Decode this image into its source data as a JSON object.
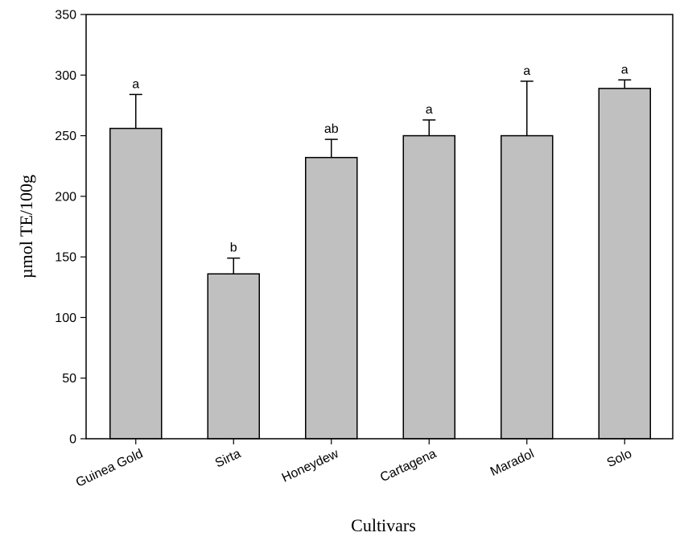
{
  "chart_data": {
    "type": "bar",
    "title": "",
    "xlabel": "Cultivars",
    "ylabel": "µmol TE/100g",
    "ylim": [
      0,
      350
    ],
    "yticks": [
      0,
      50,
      100,
      150,
      200,
      250,
      300,
      350
    ],
    "categories": [
      "Guinea Gold",
      "Sirta",
      "Honeydew",
      "Cartagena",
      "Maradol",
      "Solo"
    ],
    "values": [
      256,
      136,
      232,
      250,
      250,
      289
    ],
    "error_upper": [
      28,
      13,
      15,
      13,
      45,
      7
    ],
    "significance_letters": [
      "a",
      "b",
      "ab",
      "a",
      "a",
      "a"
    ],
    "grid": false,
    "bar_color": "#c0c0c0"
  }
}
